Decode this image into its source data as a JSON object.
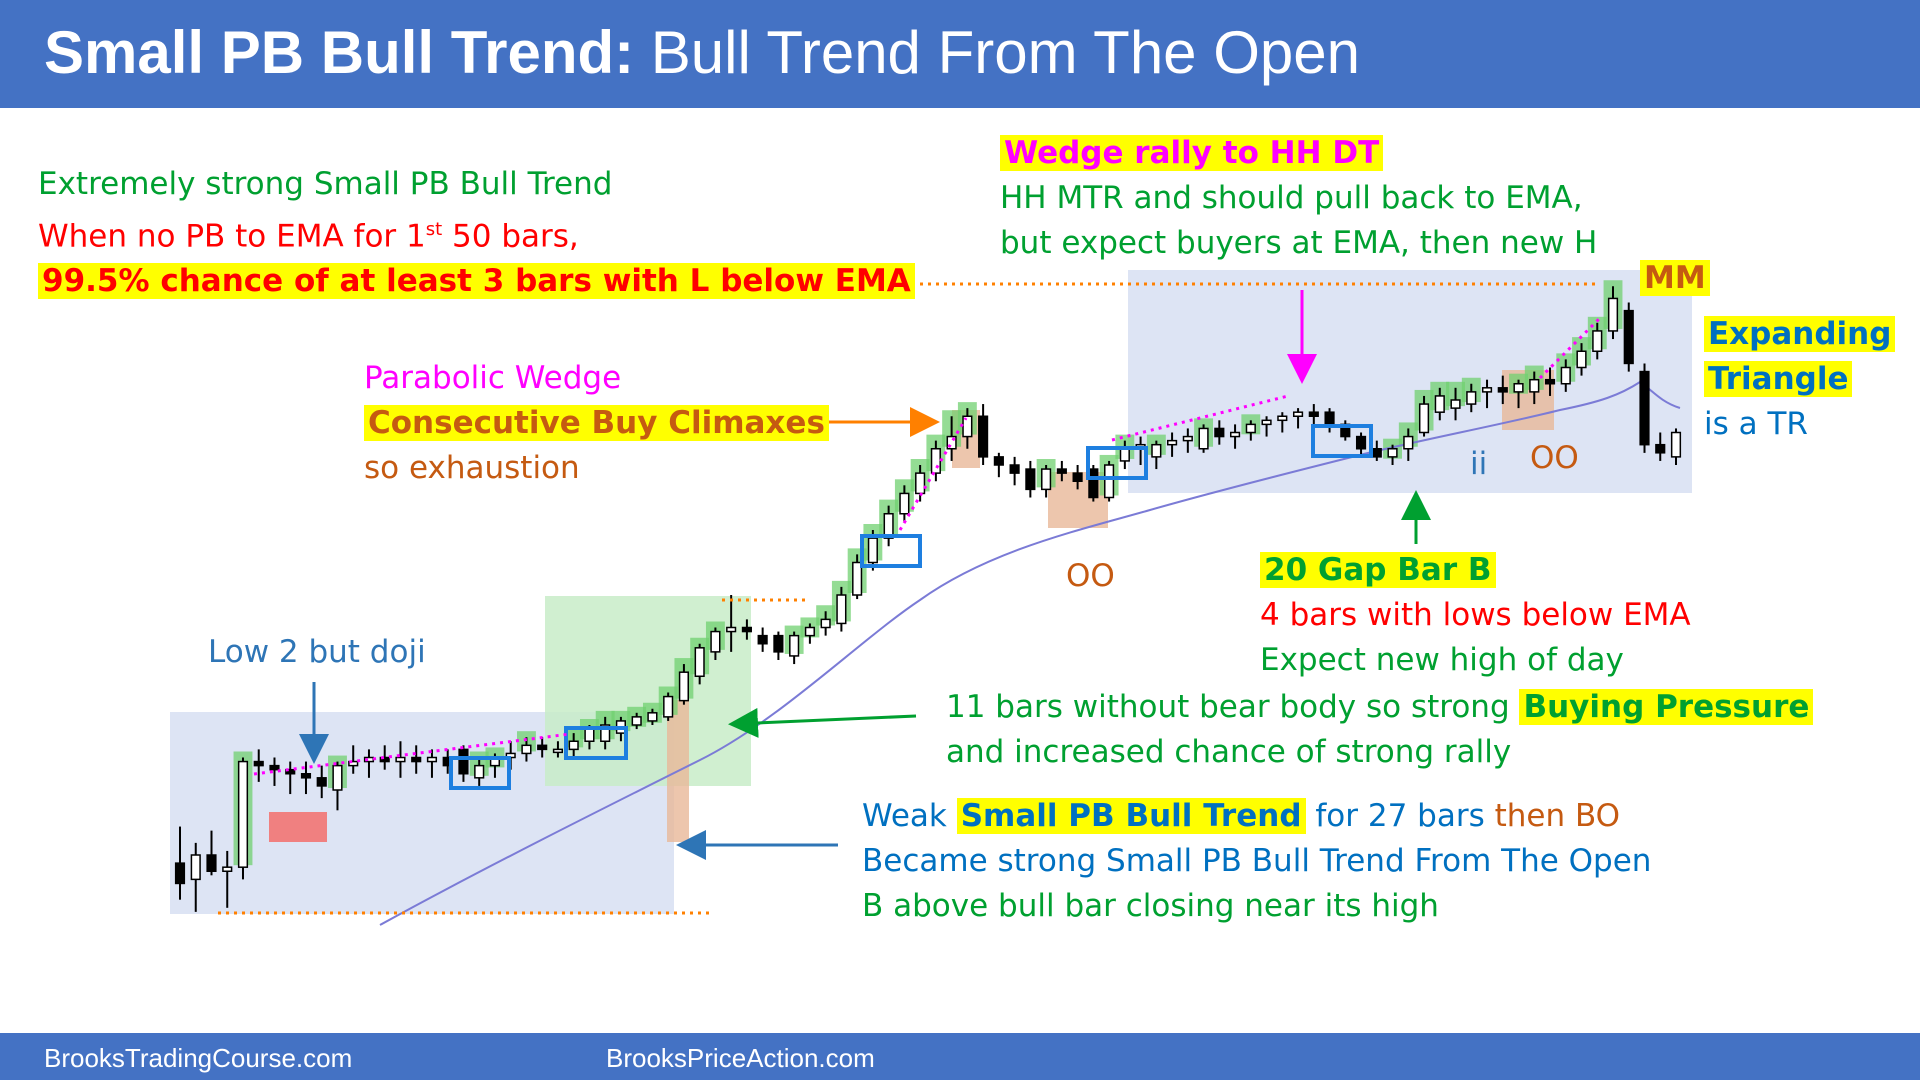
{
  "header": {
    "title_bold": "Small PB Bull Trend:",
    "title_rest": " Bull Trend From The Open"
  },
  "footer": {
    "left": "BrooksTradingCourse.com",
    "center": "BrooksPriceAction.com"
  },
  "colors": {
    "banner": "#4472c4",
    "bull_body": "#ffffff",
    "bear_body": "#000000",
    "ema": "#7b7bd6",
    "green_zone": "#70d070",
    "red_zone": "#f08080",
    "tan_zone": "#e8b898",
    "range_box": "#dde4f4",
    "blue_box": "#1e7fe0",
    "dotted_orange": "#ff8000",
    "dotted_magenta": "#ff00ff"
  },
  "annotations": {
    "a1_l1": "Extremely strong Small PB Bull Trend",
    "a1_l2a": "When no PB to EMA for 1",
    "a1_l2sup": "st",
    "a1_l2b": " 50 bars,",
    "a1_l3": "99.5% chance of at least 3 bars with L below EMA",
    "a2_l1": "Wedge rally to HH DT",
    "a2_l2": "HH MTR and should pull back to EMA,",
    "a2_l3": "but expect buyers at EMA, then new H",
    "mm": "MM",
    "a3_l1": "Expanding",
    "a3_l2": "Triangle",
    "a3_l3": "is a TR",
    "a4_l1": "Parabolic Wedge",
    "a4_l2": "Consecutive Buy Climaxes",
    "a4_l3": "so exhaustion",
    "oo1": "OO",
    "ii": "ii",
    "oo2": "OO",
    "a5_l1": "20 Gap Bar B",
    "a5_l2": "4 bars with lows below EMA",
    "a5_l3": "Expect new high of day",
    "a6": "Low 2 but doji",
    "a7_l1a": "11 bars without bear body so strong ",
    "a7_l1b": "Buying Pressure",
    "a7_l2": "and increased chance of strong rally",
    "a8_l1a": "Weak ",
    "a8_l1b": "Small PB Bull Trend",
    "a8_l1c": " for 27 bars ",
    "a8_l1d": "then BO",
    "a8_l2": "Became strong Small PB Bull Trend From The Open",
    "a8_l3": "B above bull bar closing near its high"
  },
  "chart_data": {
    "type": "candlestick",
    "price_range": [
      0,
      100
    ],
    "note_scale": "",
    "bars": [
      {
        "o": 14,
        "h": 23,
        "l": 5,
        "c": 9
      },
      {
        "o": 10,
        "h": 19,
        "l": 2,
        "c": 16
      },
      {
        "o": 16,
        "h": 22,
        "l": 11,
        "c": 12
      },
      {
        "o": 12,
        "h": 17,
        "l": 3,
        "c": 13
      },
      {
        "o": 13,
        "h": 40,
        "l": 10,
        "c": 39
      },
      {
        "o": 39,
        "h": 42,
        "l": 34,
        "c": 38
      },
      {
        "o": 38,
        "h": 40,
        "l": 33,
        "c": 37
      },
      {
        "o": 37,
        "h": 39,
        "l": 31,
        "c": 36
      },
      {
        "o": 36,
        "h": 39,
        "l": 31,
        "c": 35
      },
      {
        "o": 35,
        "h": 38,
        "l": 30,
        "c": 33
      },
      {
        "o": 32,
        "h": 39,
        "l": 27,
        "c": 38
      },
      {
        "o": 38,
        "h": 43,
        "l": 36,
        "c": 39
      },
      {
        "o": 39,
        "h": 42,
        "l": 35,
        "c": 40
      },
      {
        "o": 40,
        "h": 43,
        "l": 37,
        "c": 39
      },
      {
        "o": 39,
        "h": 44,
        "l": 35,
        "c": 40
      },
      {
        "o": 40,
        "h": 43,
        "l": 36,
        "c": 39
      },
      {
        "o": 39,
        "h": 42,
        "l": 35,
        "c": 40
      },
      {
        "o": 40,
        "h": 42,
        "l": 36,
        "c": 38
      },
      {
        "o": 42,
        "h": 43,
        "l": 34,
        "c": 36
      },
      {
        "o": 35,
        "h": 40,
        "l": 33,
        "c": 38
      },
      {
        "o": 38,
        "h": 41,
        "l": 35,
        "c": 40
      },
      {
        "o": 40,
        "h": 44,
        "l": 37,
        "c": 41
      },
      {
        "o": 41,
        "h": 45,
        "l": 39,
        "c": 43
      },
      {
        "o": 43,
        "h": 45,
        "l": 40,
        "c": 42
      },
      {
        "o": 42,
        "h": 44,
        "l": 40,
        "c": 42
      },
      {
        "o": 42,
        "h": 46,
        "l": 40,
        "c": 44
      },
      {
        "o": 44,
        "h": 48,
        "l": 42,
        "c": 47
      },
      {
        "o": 44,
        "h": 50,
        "l": 42,
        "c": 48
      },
      {
        "o": 46,
        "h": 50,
        "l": 44,
        "c": 49
      },
      {
        "o": 48,
        "h": 51,
        "l": 47,
        "c": 50
      },
      {
        "o": 49,
        "h": 52,
        "l": 48,
        "c": 51
      },
      {
        "o": 50,
        "h": 56,
        "l": 49,
        "c": 55
      },
      {
        "o": 54,
        "h": 63,
        "l": 53,
        "c": 61
      },
      {
        "o": 60,
        "h": 68,
        "l": 58,
        "c": 67
      },
      {
        "o": 66,
        "h": 72,
        "l": 64,
        "c": 71
      },
      {
        "o": 71,
        "h": 80,
        "l": 66,
        "c": 72
      },
      {
        "o": 72,
        "h": 74,
        "l": 69,
        "c": 71
      },
      {
        "o": 70,
        "h": 72,
        "l": 66,
        "c": 68
      },
      {
        "o": 70,
        "h": 71,
        "l": 64,
        "c": 66
      },
      {
        "o": 65,
        "h": 71,
        "l": 63,
        "c": 70
      },
      {
        "o": 70,
        "h": 73,
        "l": 68,
        "c": 72
      },
      {
        "o": 72,
        "h": 76,
        "l": 70,
        "c": 74
      },
      {
        "o": 73,
        "h": 82,
        "l": 71,
        "c": 80
      },
      {
        "o": 80,
        "h": 90,
        "l": 79,
        "c": 88
      },
      {
        "o": 88,
        "h": 96,
        "l": 86,
        "c": 94
      },
      {
        "o": 94,
        "h": 102,
        "l": 92,
        "c": 100
      },
      {
        "o": 100,
        "h": 107,
        "l": 98,
        "c": 105
      },
      {
        "o": 105,
        "h": 112,
        "l": 103,
        "c": 110
      },
      {
        "o": 110,
        "h": 118,
        "l": 108,
        "c": 116
      },
      {
        "o": 116,
        "h": 124,
        "l": 113,
        "c": 119
      },
      {
        "o": 119,
        "h": 126,
        "l": 116,
        "c": 124
      },
      {
        "o": 124,
        "h": 127,
        "l": 112,
        "c": 114
      },
      {
        "o": 114,
        "h": 115,
        "l": 109,
        "c": 112
      },
      {
        "o": 112,
        "h": 114,
        "l": 107,
        "c": 110
      },
      {
        "o": 111,
        "h": 113,
        "l": 104,
        "c": 106
      },
      {
        "o": 106,
        "h": 112,
        "l": 104,
        "c": 111
      },
      {
        "o": 111,
        "h": 113,
        "l": 108,
        "c": 110
      },
      {
        "o": 110,
        "h": 112,
        "l": 106,
        "c": 108
      },
      {
        "o": 111,
        "h": 112,
        "l": 103,
        "c": 104
      },
      {
        "o": 104,
        "h": 113,
        "l": 103,
        "c": 112
      },
      {
        "o": 113,
        "h": 118,
        "l": 111,
        "c": 116
      },
      {
        "o": 116,
        "h": 119,
        "l": 112,
        "c": 117
      },
      {
        "o": 114,
        "h": 118,
        "l": 111,
        "c": 117
      },
      {
        "o": 117,
        "h": 120,
        "l": 114,
        "c": 118
      },
      {
        "o": 118,
        "h": 121,
        "l": 115,
        "c": 119
      },
      {
        "o": 116,
        "h": 122,
        "l": 115,
        "c": 121
      },
      {
        "o": 121,
        "h": 123,
        "l": 117,
        "c": 119
      },
      {
        "o": 119,
        "h": 122,
        "l": 116,
        "c": 120
      },
      {
        "o": 120,
        "h": 123,
        "l": 118,
        "c": 122
      },
      {
        "o": 122,
        "h": 124,
        "l": 119,
        "c": 123
      },
      {
        "o": 123,
        "h": 125,
        "l": 120,
        "c": 124
      },
      {
        "o": 124,
        "h": 126,
        "l": 121,
        "c": 125
      },
      {
        "o": 125,
        "h": 127,
        "l": 122,
        "c": 124
      },
      {
        "o": 125,
        "h": 126,
        "l": 120,
        "c": 122
      },
      {
        "o": 122,
        "h": 123,
        "l": 118,
        "c": 119
      },
      {
        "o": 119,
        "h": 120,
        "l": 114,
        "c": 116
      },
      {
        "o": 116,
        "h": 118,
        "l": 113,
        "c": 114
      },
      {
        "o": 114,
        "h": 117,
        "l": 112,
        "c": 116
      },
      {
        "o": 116,
        "h": 121,
        "l": 113,
        "c": 119
      },
      {
        "o": 120,
        "h": 129,
        "l": 119,
        "c": 127
      },
      {
        "o": 125,
        "h": 131,
        "l": 123,
        "c": 129
      },
      {
        "o": 126,
        "h": 131,
        "l": 123,
        "c": 128
      },
      {
        "o": 127,
        "h": 132,
        "l": 125,
        "c": 130
      },
      {
        "o": 130,
        "h": 133,
        "l": 126,
        "c": 131
      },
      {
        "o": 131,
        "h": 134,
        "l": 127,
        "c": 130
      },
      {
        "o": 130,
        "h": 133,
        "l": 126,
        "c": 132
      },
      {
        "o": 130,
        "h": 135,
        "l": 127,
        "c": 133
      },
      {
        "o": 133,
        "h": 136,
        "l": 129,
        "c": 132
      },
      {
        "o": 132,
        "h": 138,
        "l": 130,
        "c": 136
      },
      {
        "o": 136,
        "h": 142,
        "l": 134,
        "c": 140
      },
      {
        "o": 140,
        "h": 147,
        "l": 138,
        "c": 145
      },
      {
        "o": 145,
        "h": 156,
        "l": 143,
        "c": 153
      },
      {
        "o": 150,
        "h": 152,
        "l": 135,
        "c": 137
      },
      {
        "o": 135,
        "h": 137,
        "l": 115,
        "c": 117
      },
      {
        "o": 117,
        "h": 120,
        "l": 113,
        "c": 115
      },
      {
        "o": 114,
        "h": 121,
        "l": 112,
        "c": 120
      }
    ]
  }
}
